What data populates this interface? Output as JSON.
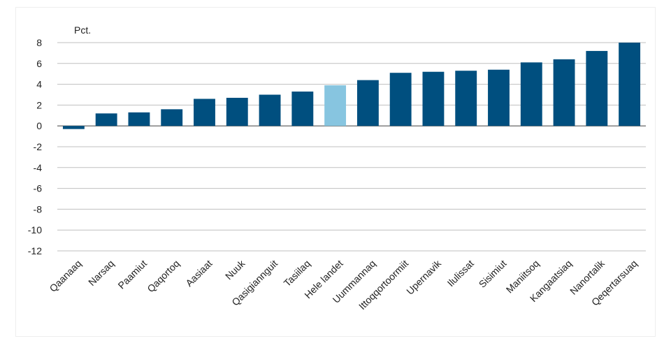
{
  "chart_data": {
    "type": "bar",
    "title": "",
    "xlabel": "",
    "ylabel": "Pct.",
    "ylim": [
      -12,
      8
    ],
    "yticks": [
      8,
      6,
      4,
      2,
      0,
      -2,
      -4,
      -6,
      -8,
      -10,
      -12
    ],
    "grid": true,
    "legend": "none",
    "categories": [
      "Qaanaaq",
      "Narsaq",
      "Paamiut",
      "Qaqortoq",
      "Aasiaat",
      "Nuuk",
      "Qasigiannguit",
      "Tasiilaq",
      "Hele landet",
      "Uummannaq",
      "Ittoqqortoormiit",
      "Upernavik",
      "Ilulissat",
      "Sisimiut",
      "Maniitsoq",
      "Kangaatsiaq",
      "Nanortalik",
      "Qeqertarsuaq"
    ],
    "values": [
      -0.3,
      1.2,
      1.3,
      1.6,
      2.6,
      2.7,
      3.0,
      3.3,
      3.9,
      4.4,
      5.1,
      5.2,
      5.3,
      5.4,
      6.1,
      6.4,
      7.2,
      8.0
    ],
    "highlight_category": "Hele landet",
    "colors": {
      "bar": "#004f7f",
      "highlight": "#87c5e0",
      "grid": "#bfbfbf",
      "axis": "#7f7f7f"
    }
  }
}
